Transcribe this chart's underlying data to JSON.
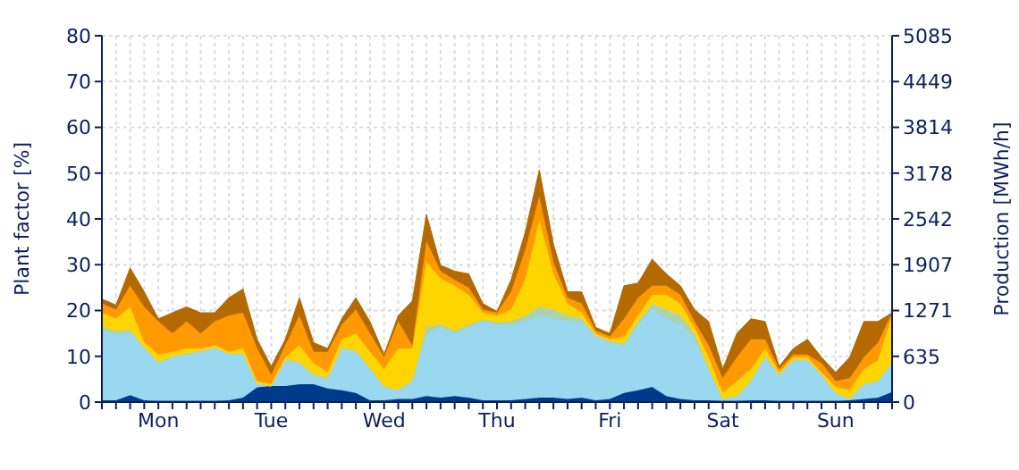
{
  "chart_data": {
    "type": "area",
    "stacked": true,
    "ylabel": "Plant factor [%]",
    "y2label": "Production [MWh/h]",
    "categories": [
      null,
      null,
      null,
      null,
      "Mon",
      null,
      null,
      null,
      null,
      null,
      null,
      null,
      "Tue",
      null,
      null,
      null,
      null,
      null,
      null,
      null,
      "Wed",
      null,
      null,
      null,
      null,
      null,
      null,
      null,
      "Thu",
      null,
      null,
      null,
      null,
      null,
      null,
      null,
      "Fri",
      null,
      null,
      null,
      null,
      null,
      null,
      null,
      "Sat",
      null,
      null,
      null,
      null,
      null,
      null,
      null,
      "Sun",
      null,
      null,
      null,
      null
    ],
    "ylim": [
      0,
      80
    ],
    "yticks": [
      0,
      10,
      20,
      30,
      40,
      50,
      60,
      70,
      80
    ],
    "y2lim": [
      0,
      5085
    ],
    "y2ticks": [
      0,
      635,
      1271,
      1907,
      2542,
      3178,
      3814,
      4449,
      5085
    ],
    "grid": true,
    "legend": false,
    "series": [
      {
        "color": "#003a8c",
        "values": [
          0.4,
          0.4,
          1.5,
          0.4,
          0.3,
          0.3,
          0.3,
          0.3,
          0.3,
          0.4,
          1,
          3.2,
          3.5,
          3.5,
          3.9,
          3.9,
          3,
          2.6,
          2,
          0.4,
          0.4,
          0.7,
          0.7,
          1.3,
          1,
          1.3,
          1,
          0.4,
          0.4,
          0.4,
          0.7,
          1,
          1,
          0.7,
          1,
          0.4,
          0.7,
          2,
          2.6,
          3.3,
          1.3,
          0.7,
          0.4,
          0.4,
          0.3,
          0.3,
          0.4,
          0.4,
          0.3,
          0.3,
          0.3,
          0.3,
          0.3,
          0.4,
          0.7,
          1,
          2.2
        ]
      },
      {
        "color": "#99d8ef",
        "values": [
          15.2,
          14.6,
          13.7,
          11.3,
          8.2,
          9.5,
          10.1,
          10.7,
          11.4,
          10,
          9.4,
          0.7,
          0,
          5.6,
          4.6,
          2,
          2.2,
          9.1,
          9,
          6.8,
          2.9,
          1.9,
          3.9,
          13.7,
          15.3,
          13.7,
          15.3,
          17.2,
          16.5,
          16.5,
          16.9,
          17.9,
          17.2,
          16.9,
          16.6,
          13.9,
          12.3,
          10.4,
          14.3,
          16.9,
          16.9,
          16.2,
          13.3,
          6.8,
          0.4,
          1,
          4.2,
          9.4,
          5.6,
          8.8,
          8.8,
          5.6,
          1.7,
          0.3,
          3.2,
          3.6,
          6.3
        ]
      },
      {
        "color": "#a9d3b5",
        "values": [
          0.9,
          0.5,
          0.5,
          0.3,
          0.3,
          0.2,
          0.2,
          0.2,
          0.2,
          0.2,
          0.2,
          0.1,
          0,
          0.2,
          0.2,
          0.1,
          0.1,
          0.2,
          0.2,
          0.2,
          0.1,
          0.1,
          0.1,
          1.3,
          0.7,
          0.6,
          0.6,
          0.4,
          0.5,
          0.7,
          1.3,
          1.9,
          2,
          1.3,
          0.6,
          0.3,
          0.3,
          0.3,
          0.7,
          1.3,
          2,
          2,
          1.3,
          0.2,
          0,
          0,
          0.1,
          0.2,
          0.1,
          0.1,
          0.1,
          0.1,
          0,
          0,
          0.1,
          0.1,
          0.1
        ]
      },
      {
        "color": "#ffd500",
        "values": [
          3,
          2.7,
          5.1,
          1,
          1.6,
          1,
          1.1,
          0.5,
          0.5,
          0.4,
          1.1,
          0.6,
          0.4,
          0.5,
          3.7,
          2.5,
          1.2,
          1.8,
          3.8,
          3.6,
          3.8,
          9,
          7,
          14.3,
          10,
          9.8,
          6.5,
          1.5,
          1.5,
          2.6,
          7.8,
          18.9,
          7.8,
          2.6,
          1.3,
          0.4,
          0.4,
          1.6,
          1.3,
          1.9,
          3.2,
          2.6,
          1.3,
          2.4,
          1.3,
          3.3,
          2.5,
          1.7,
          0.5,
          0.6,
          0.6,
          0.5,
          1.3,
          1.9,
          3.2,
          4.4,
          10.3
        ]
      },
      {
        "color": "#ff9900",
        "values": [
          2,
          2,
          4.6,
          7.8,
          7.2,
          4,
          5.9,
          3.3,
          5.2,
          7.9,
          7.8,
          7.1,
          2,
          2.6,
          6.5,
          2.5,
          4.5,
          3.2,
          5.2,
          4,
          2.6,
          5.9,
          0.7,
          4.5,
          1.6,
          1.3,
          1.6,
          0.7,
          0.6,
          3.9,
          6.5,
          5.2,
          2.6,
          1.3,
          2,
          0.6,
          0.6,
          3.9,
          3.9,
          2,
          2,
          1.9,
          1.3,
          2.6,
          3.2,
          5.2,
          6.5,
          2,
          0.7,
          0.6,
          0.6,
          2,
          1.3,
          2.6,
          2.6,
          3.9,
          0.6
        ]
      },
      {
        "color": "#b46a00",
        "values": [
          1,
          1,
          3.9,
          3.3,
          0.6,
          4.5,
          3.2,
          4.5,
          1.9,
          3.9,
          5.2,
          2,
          1.9,
          1.3,
          3.9,
          2,
          0.7,
          1.3,
          2.6,
          2.6,
          0.6,
          1.3,
          9.7,
          5.9,
          1.3,
          1.9,
          3,
          1.3,
          0.3,
          2.6,
          3.9,
          5.8,
          3.9,
          1.3,
          2.6,
          0.7,
          0.7,
          7.2,
          3.2,
          5.8,
          2.6,
          2,
          2.6,
          5.2,
          2,
          5.2,
          4.5,
          3.9,
          0.6,
          1.3,
          3.3,
          1.3,
          1.9,
          4.6,
          7.8,
          4.6,
          0
        ]
      }
    ]
  }
}
